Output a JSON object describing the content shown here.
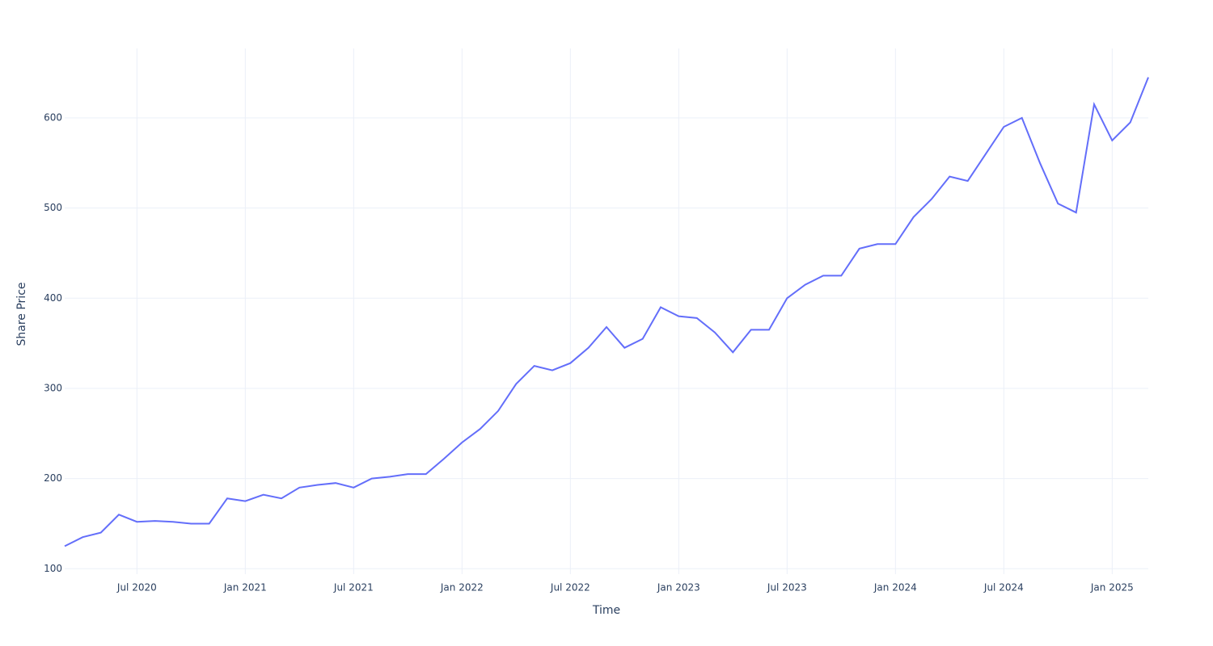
{
  "chart_data": {
    "type": "line",
    "x_label": "Time",
    "y_label": "Share Price",
    "x": [
      "2020-03",
      "2020-04",
      "2020-05",
      "2020-06",
      "2020-07",
      "2020-08",
      "2020-09",
      "2020-10",
      "2020-11",
      "2020-12",
      "2021-01",
      "2021-02",
      "2021-03",
      "2021-04",
      "2021-05",
      "2021-06",
      "2021-07",
      "2021-08",
      "2021-09",
      "2021-10",
      "2021-11",
      "2021-12",
      "2022-01",
      "2022-02",
      "2022-03",
      "2022-04",
      "2022-05",
      "2022-06",
      "2022-07",
      "2022-08",
      "2022-09",
      "2022-10",
      "2022-11",
      "2022-12",
      "2023-01",
      "2023-02",
      "2023-03",
      "2023-04",
      "2023-05",
      "2023-06",
      "2023-07",
      "2023-08",
      "2023-09",
      "2023-10",
      "2023-11",
      "2023-12",
      "2024-01",
      "2024-02",
      "2024-03",
      "2024-04",
      "2024-05",
      "2024-06",
      "2024-07",
      "2024-08",
      "2024-09",
      "2024-10",
      "2024-11",
      "2024-12",
      "2025-01",
      "2025-02",
      "2025-03"
    ],
    "values": [
      125,
      135,
      140,
      160,
      152,
      153,
      152,
      150,
      150,
      178,
      175,
      182,
      178,
      190,
      193,
      195,
      190,
      200,
      202,
      205,
      205,
      222,
      240,
      255,
      275,
      305,
      325,
      320,
      328,
      345,
      368,
      345,
      355,
      390,
      380,
      378,
      362,
      340,
      365,
      365,
      400,
      415,
      425,
      425,
      455,
      460,
      460,
      490,
      510,
      535,
      530,
      560,
      590,
      600,
      550,
      505,
      495,
      615,
      575,
      595,
      645
    ],
    "color": "#636efa",
    "xlim": [
      "2020-03",
      "2025-03"
    ],
    "xticks": [
      {
        "value": "2020-07",
        "label": "Jul 2020"
      },
      {
        "value": "2021-01",
        "label": "Jan 2021"
      },
      {
        "value": "2021-07",
        "label": "Jul 2021"
      },
      {
        "value": "2022-01",
        "label": "Jan 2022"
      },
      {
        "value": "2022-07",
        "label": "Jul 2022"
      },
      {
        "value": "2023-01",
        "label": "Jan 2023"
      },
      {
        "value": "2023-07",
        "label": "Jul 2023"
      },
      {
        "value": "2024-01",
        "label": "Jan 2024"
      },
      {
        "value": "2024-07",
        "label": "Jul 2024"
      },
      {
        "value": "2025-01",
        "label": "Jan 2025"
      }
    ],
    "ylim": [
      94,
      677
    ],
    "yticks": [
      100,
      200,
      300,
      400,
      500,
      600
    ],
    "grid": true
  }
}
